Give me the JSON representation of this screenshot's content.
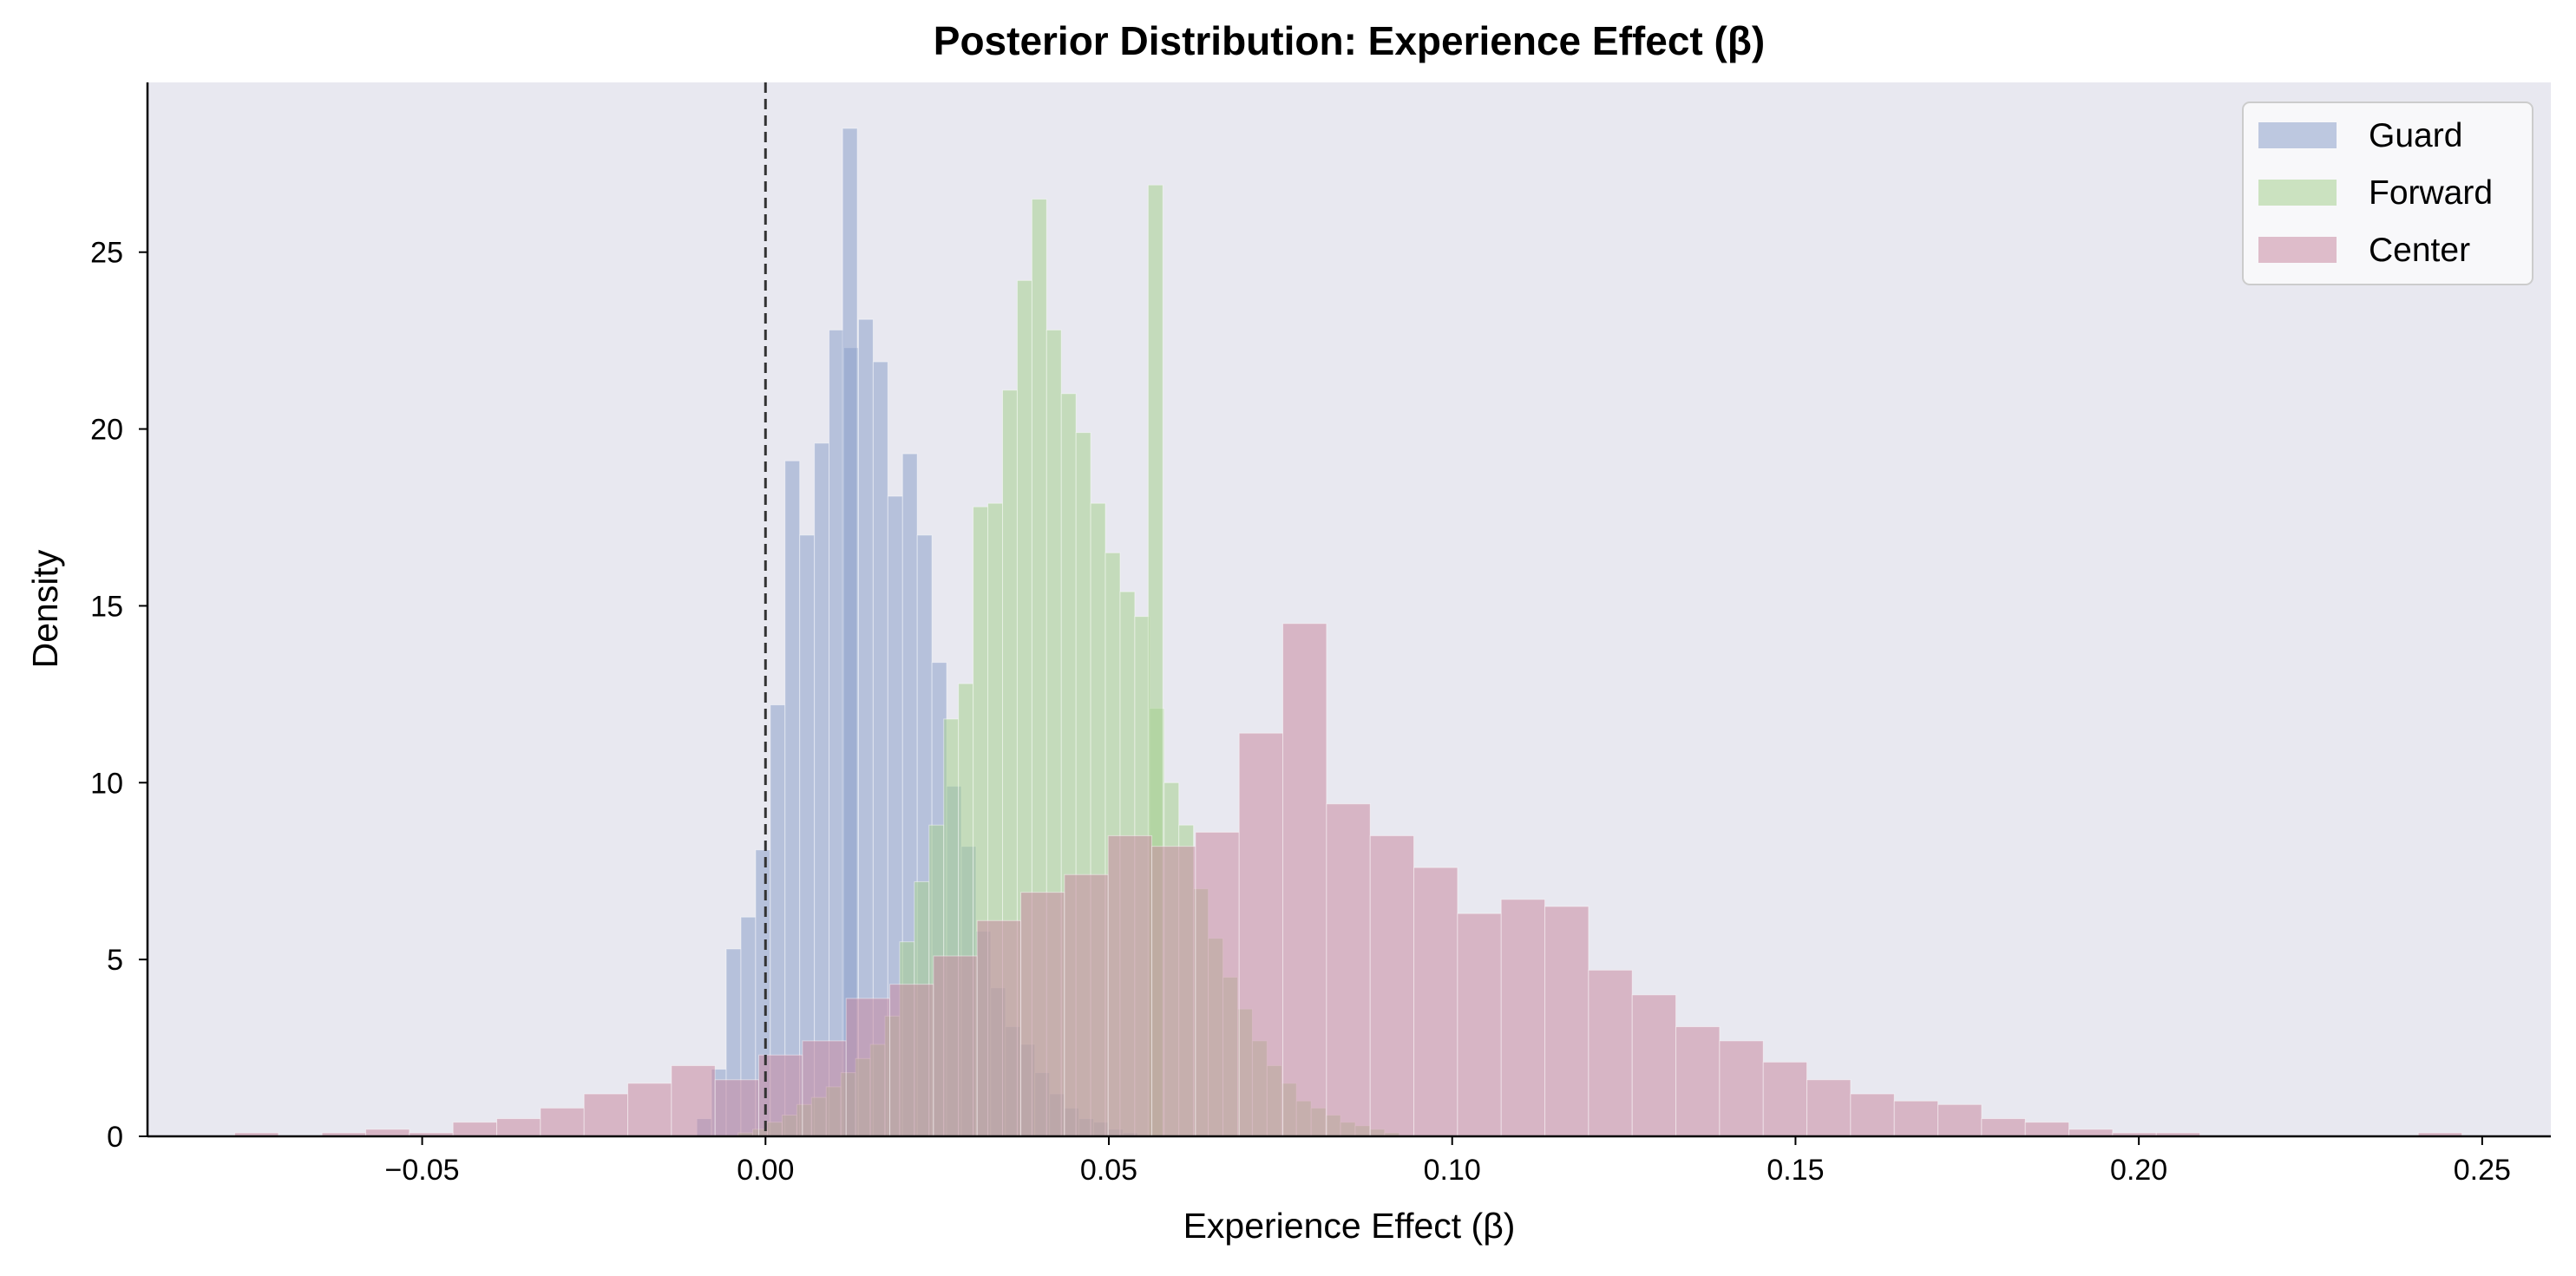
{
  "chart_data": {
    "type": "histogram",
    "title": "Posterior Distribution: Experience Effect (β)",
    "xlabel": "Experience Effect (β)",
    "ylabel": "Density",
    "xlim": [
      -0.09,
      0.26
    ],
    "ylim": [
      0,
      29.8
    ],
    "xticks": [
      -0.05,
      0.0,
      0.05,
      0.1,
      0.15,
      0.2,
      0.25
    ],
    "xtick_labels": [
      "−0.05",
      "0.00",
      "0.05",
      "0.10",
      "0.15",
      "0.20",
      "0.25"
    ],
    "yticks": [
      0,
      5,
      10,
      15,
      20,
      25
    ],
    "ytick_labels": [
      "0",
      "5",
      "10",
      "15",
      "20",
      "25"
    ],
    "grid": false,
    "reference_line": {
      "x": 0.0,
      "style": "dashed"
    },
    "legend": {
      "position": "top-right"
    },
    "plot_background": "#e8e8f0",
    "series": [
      {
        "name": "Guard",
        "color": "#8da0cb",
        "alpha": 0.55,
        "bin_start": -0.01,
        "bin_width": 0.00214,
        "values": [
          0.5,
          1.9,
          5.3,
          6.2,
          8.1,
          12.2,
          19.1,
          17.0,
          19.6,
          22.8,
          22.3,
          23.1,
          21.9,
          18.1,
          19.3,
          17.0,
          13.4,
          9.9,
          8.2,
          5.8,
          4.2,
          3.1,
          2.6,
          1.8,
          1.2,
          0.8,
          0.5,
          0.4,
          0.2,
          0.1
        ],
        "spike": {
          "x": 0.0123,
          "value": 28.5
        }
      },
      {
        "name": "Forward",
        "color": "#a6cf8f",
        "alpha": 0.55,
        "bin_start": -0.004,
        "bin_width": 0.00214,
        "values": [
          0.1,
          0.2,
          0.4,
          0.6,
          0.9,
          1.1,
          1.4,
          1.8,
          2.2,
          2.6,
          3.4,
          5.5,
          7.2,
          8.8,
          11.8,
          12.8,
          17.8,
          17.9,
          21.1,
          24.2,
          26.5,
          22.8,
          21.0,
          19.9,
          17.9,
          16.5,
          15.4,
          14.7,
          12.1,
          10.0,
          8.8,
          7.0,
          5.6,
          4.5,
          3.6,
          2.7,
          2.0,
          1.5,
          1.0,
          0.8,
          0.6,
          0.4,
          0.3,
          0.2,
          0.1
        ],
        "spike": {
          "x": 0.0568,
          "value": 26.9
        }
      },
      {
        "name": "Center",
        "color": "#c88ba3",
        "alpha": 0.55,
        "bin_start": -0.0773,
        "bin_width": 0.00636,
        "values": [
          0.1,
          0.0,
          0.1,
          0.2,
          0.1,
          0.4,
          0.5,
          0.8,
          1.2,
          1.5,
          2.0,
          1.6,
          2.3,
          2.7,
          3.9,
          4.3,
          5.1,
          6.1,
          6.9,
          7.4,
          8.5,
          8.2,
          8.6,
          11.4,
          14.5,
          9.4,
          8.5,
          7.6,
          6.3,
          6.7,
          6.5,
          4.7,
          4.0,
          3.1,
          2.7,
          2.1,
          1.6,
          1.2,
          1.0,
          0.9,
          0.5,
          0.4,
          0.2,
          0.1,
          0.1,
          0.0,
          0.0,
          0.0,
          0.0,
          0.0,
          0.1
        ]
      }
    ]
  }
}
